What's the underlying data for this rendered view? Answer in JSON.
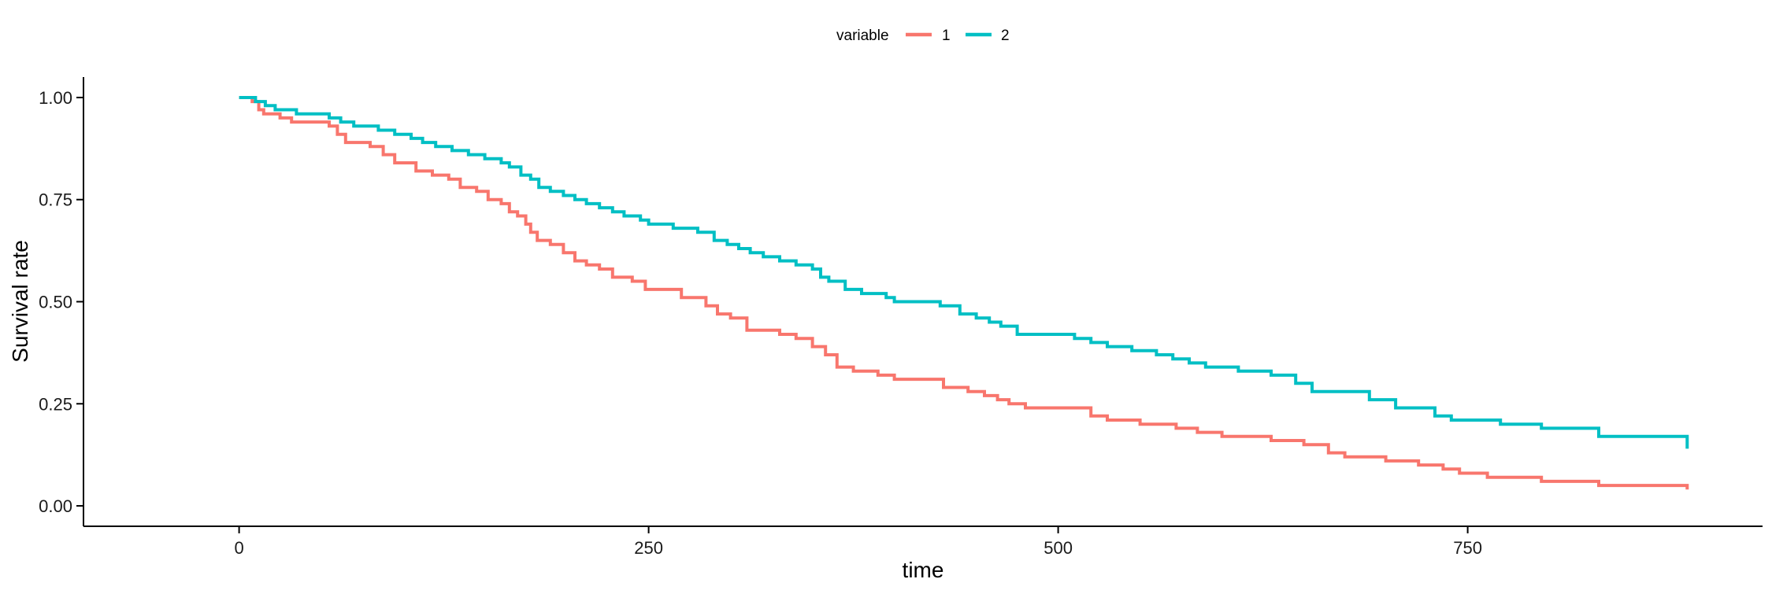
{
  "chart_data": {
    "type": "line",
    "xlabel": "time",
    "ylabel": "Survival rate",
    "xlim": [
      -95,
      930
    ],
    "ylim": [
      -0.05,
      1.05
    ],
    "x_ticks": [
      0,
      250,
      500,
      750
    ],
    "x_tick_labels": [
      "0",
      "250",
      "500",
      "750"
    ],
    "y_ticks": [
      0,
      0.25,
      0.5,
      0.75,
      1
    ],
    "y_tick_labels": [
      "0.00",
      "0.25",
      "0.50",
      "0.75",
      "1.00"
    ],
    "grid": false,
    "legend": {
      "title": "variable",
      "position": "top-center"
    },
    "series": [
      {
        "name": "1",
        "color": "#F8766D",
        "step": true,
        "points": [
          [
            0,
            1.0
          ],
          [
            8,
            0.99
          ],
          [
            12,
            0.97
          ],
          [
            15,
            0.96
          ],
          [
            25,
            0.95
          ],
          [
            32,
            0.94
          ],
          [
            55,
            0.93
          ],
          [
            60,
            0.91
          ],
          [
            65,
            0.89
          ],
          [
            80,
            0.88
          ],
          [
            88,
            0.86
          ],
          [
            95,
            0.84
          ],
          [
            108,
            0.82
          ],
          [
            118,
            0.81
          ],
          [
            128,
            0.8
          ],
          [
            135,
            0.78
          ],
          [
            145,
            0.77
          ],
          [
            152,
            0.75
          ],
          [
            160,
            0.74
          ],
          [
            165,
            0.72
          ],
          [
            170,
            0.71
          ],
          [
            175,
            0.69
          ],
          [
            178,
            0.67
          ],
          [
            182,
            0.65
          ],
          [
            190,
            0.64
          ],
          [
            198,
            0.62
          ],
          [
            205,
            0.6
          ],
          [
            212,
            0.59
          ],
          [
            220,
            0.58
          ],
          [
            228,
            0.56
          ],
          [
            240,
            0.55
          ],
          [
            248,
            0.53
          ],
          [
            270,
            0.51
          ],
          [
            285,
            0.49
          ],
          [
            292,
            0.47
          ],
          [
            300,
            0.46
          ],
          [
            310,
            0.43
          ],
          [
            330,
            0.42
          ],
          [
            340,
            0.41
          ],
          [
            350,
            0.39
          ],
          [
            358,
            0.37
          ],
          [
            365,
            0.34
          ],
          [
            375,
            0.33
          ],
          [
            390,
            0.32
          ],
          [
            400,
            0.31
          ],
          [
            430,
            0.29
          ],
          [
            445,
            0.28
          ],
          [
            455,
            0.27
          ],
          [
            463,
            0.26
          ],
          [
            470,
            0.25
          ],
          [
            480,
            0.24
          ],
          [
            520,
            0.22
          ],
          [
            530,
            0.21
          ],
          [
            550,
            0.2
          ],
          [
            572,
            0.19
          ],
          [
            585,
            0.18
          ],
          [
            600,
            0.17
          ],
          [
            630,
            0.16
          ],
          [
            650,
            0.15
          ],
          [
            665,
            0.13
          ],
          [
            675,
            0.12
          ],
          [
            700,
            0.11
          ],
          [
            720,
            0.1
          ],
          [
            735,
            0.09
          ],
          [
            745,
            0.08
          ],
          [
            762,
            0.07
          ],
          [
            795,
            0.06
          ],
          [
            830,
            0.05
          ],
          [
            884,
            0.05
          ],
          [
            884,
            0.04
          ]
        ]
      },
      {
        "name": "2",
        "color": "#00BFC4",
        "step": true,
        "points": [
          [
            0,
            1.0
          ],
          [
            10,
            0.99
          ],
          [
            16,
            0.98
          ],
          [
            22,
            0.97
          ],
          [
            35,
            0.96
          ],
          [
            55,
            0.95
          ],
          [
            62,
            0.94
          ],
          [
            70,
            0.93
          ],
          [
            85,
            0.92
          ],
          [
            95,
            0.91
          ],
          [
            105,
            0.9
          ],
          [
            112,
            0.89
          ],
          [
            120,
            0.88
          ],
          [
            130,
            0.87
          ],
          [
            140,
            0.86
          ],
          [
            150,
            0.85
          ],
          [
            160,
            0.84
          ],
          [
            165,
            0.83
          ],
          [
            172,
            0.81
          ],
          [
            178,
            0.8
          ],
          [
            183,
            0.78
          ],
          [
            190,
            0.77
          ],
          [
            198,
            0.76
          ],
          [
            205,
            0.75
          ],
          [
            212,
            0.74
          ],
          [
            220,
            0.73
          ],
          [
            228,
            0.72
          ],
          [
            235,
            0.71
          ],
          [
            245,
            0.7
          ],
          [
            250,
            0.69
          ],
          [
            265,
            0.68
          ],
          [
            280,
            0.67
          ],
          [
            290,
            0.65
          ],
          [
            298,
            0.64
          ],
          [
            305,
            0.63
          ],
          [
            312,
            0.62
          ],
          [
            320,
            0.61
          ],
          [
            330,
            0.6
          ],
          [
            340,
            0.59
          ],
          [
            350,
            0.58
          ],
          [
            355,
            0.56
          ],
          [
            360,
            0.55
          ],
          [
            370,
            0.53
          ],
          [
            380,
            0.52
          ],
          [
            395,
            0.51
          ],
          [
            400,
            0.5
          ],
          [
            428,
            0.49
          ],
          [
            440,
            0.47
          ],
          [
            450,
            0.46
          ],
          [
            458,
            0.45
          ],
          [
            465,
            0.44
          ],
          [
            475,
            0.42
          ],
          [
            510,
            0.41
          ],
          [
            520,
            0.4
          ],
          [
            530,
            0.39
          ],
          [
            545,
            0.38
          ],
          [
            560,
            0.37
          ],
          [
            570,
            0.36
          ],
          [
            580,
            0.35
          ],
          [
            590,
            0.34
          ],
          [
            610,
            0.33
          ],
          [
            630,
            0.32
          ],
          [
            645,
            0.3
          ],
          [
            655,
            0.28
          ],
          [
            690,
            0.26
          ],
          [
            706,
            0.24
          ],
          [
            730,
            0.22
          ],
          [
            740,
            0.21
          ],
          [
            770,
            0.2
          ],
          [
            795,
            0.19
          ],
          [
            830,
            0.17
          ],
          [
            884,
            0.16
          ],
          [
            884,
            0.14
          ]
        ]
      }
    ]
  }
}
